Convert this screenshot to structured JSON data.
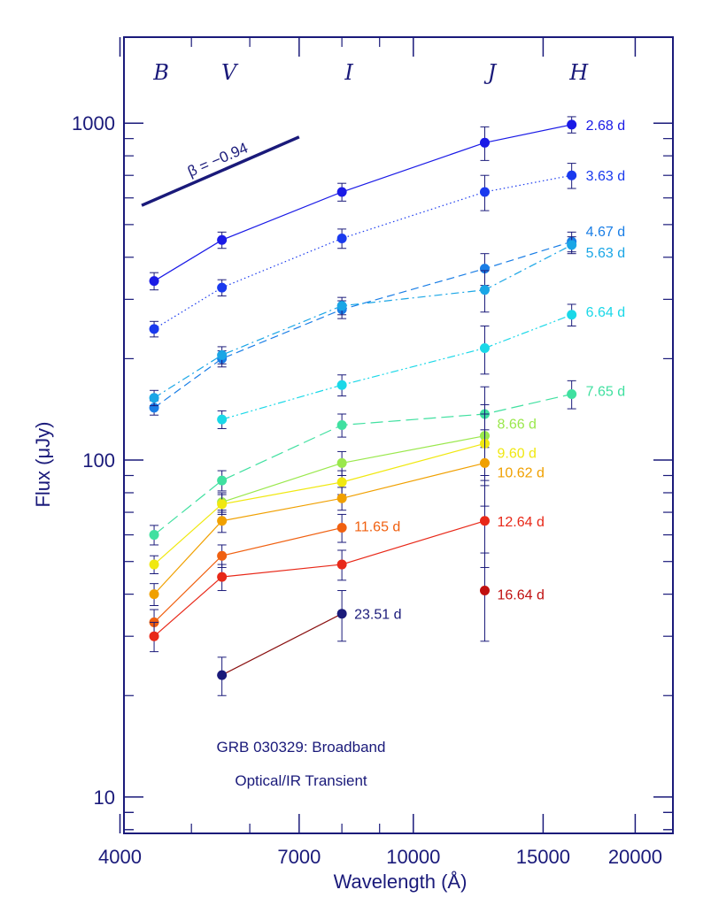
{
  "chart_data": {
    "type": "line",
    "title": "GRB 030329: Broadband Optical/IR Transient",
    "annotation_lines": [
      "GRB 030329: Broadband",
      "Optical/IR Transient"
    ],
    "xlabel": "Wavelength (Å)",
    "ylabel": "Flux (μJy)",
    "x_scale": "log",
    "y_scale": "log",
    "xlim": [
      4050,
      22500
    ],
    "ylim": [
      7.8,
      1800
    ],
    "x_tick_labels": [
      "4000",
      "7000",
      "10000",
      "15000",
      "20000"
    ],
    "x_tick_values": [
      4000,
      7000,
      10000,
      15000,
      20000
    ],
    "x_minor_ticks": [
      5000,
      6000,
      8000,
      9000
    ],
    "y_tick_labels": [
      "10",
      "100",
      "1000"
    ],
    "y_tick_values": [
      10,
      100,
      1000
    ],
    "bands": [
      {
        "name": "B",
        "x": 4450
      },
      {
        "name": "V",
        "x": 5500
      },
      {
        "name": "I",
        "x": 8000
      },
      {
        "name": "J",
        "x": 12500
      },
      {
        "name": "H",
        "x": 16400
      }
    ],
    "slope_line": {
      "label": "β = −0.94",
      "x": [
        4450,
        7000
      ],
      "y": [
        570,
        910
      ],
      "color": "#1a1a7a"
    },
    "axis_color": "#1a1a7a",
    "series": [
      {
        "name": "2.68 d",
        "color": "#1a1ae6",
        "dash": "solid",
        "x": [
          4450,
          5500,
          8000,
          12500,
          16400
        ],
        "y": [
          340,
          450,
          625,
          875,
          990
        ],
        "err": [
          20,
          25,
          38,
          100,
          55
        ]
      },
      {
        "name": "3.63 d",
        "color": "#1a3aee",
        "dash": "dotted",
        "x": [
          4450,
          5500,
          8000,
          12500,
          16400
        ],
        "y": [
          245,
          325,
          455,
          625,
          700
        ],
        "err": [
          13,
          18,
          30,
          75,
          60
        ]
      },
      {
        "name": "4.67 d",
        "color": "#1a7ee6",
        "dash": "dashed",
        "x": [
          4450,
          5500,
          8000,
          12500,
          16400
        ],
        "y": [
          143,
          200,
          280,
          370,
          445
        ],
        "err": [
          7,
          11,
          17,
          40,
          30
        ]
      },
      {
        "name": "5.63 d",
        "color": "#1aa6e6",
        "dash": "dashdot",
        "x": [
          4450,
          5500,
          8000,
          12500,
          16400
        ],
        "y": [
          153,
          205,
          287,
          320,
          435
        ],
        "err": [
          8,
          12,
          17,
          45,
          25
        ]
      },
      {
        "name": "6.64 d",
        "color": "#1ad8e8",
        "dash": "dashdotdot",
        "x": [
          5500,
          8000,
          12500,
          16400
        ],
        "y": [
          132,
          167,
          215,
          270
        ],
        "err": [
          8,
          12,
          35,
          20
        ]
      },
      {
        "name": "7.65 d",
        "color": "#40e0a0",
        "dash": "longdash",
        "x": [
          4450,
          5500,
          8000,
          12500,
          16400
        ],
        "y": [
          60,
          87,
          127,
          137,
          157
        ],
        "err": [
          4,
          6,
          10,
          28,
          15
        ]
      },
      {
        "name": "8.66 d",
        "color": "#9ae84c",
        "dash": "solid",
        "x": [
          5500,
          8000,
          12500
        ],
        "y": [
          75,
          98,
          118
        ],
        "err": [
          5,
          8,
          28
        ]
      },
      {
        "name": "9.60 d",
        "color": "#f0e810",
        "dash": "solid",
        "x": [
          4450,
          5500,
          8000,
          12500
        ],
        "y": [
          49,
          74,
          86,
          112
        ],
        "err": [
          3,
          5,
          7,
          25
        ]
      },
      {
        "name": "10.62 d",
        "color": "#f0a000",
        "dash": "solid",
        "x": [
          4450,
          5500,
          8000,
          12500
        ],
        "y": [
          40,
          66,
          77,
          98
        ],
        "err": [
          3,
          5,
          6,
          25
        ]
      },
      {
        "name": "11.65 d",
        "color": "#f06010",
        "dash": "solid",
        "x": [
          4450,
          5500,
          8000
        ],
        "y": [
          33,
          52,
          63
        ],
        "err": [
          3,
          4,
          6
        ]
      },
      {
        "name": "12.64 d",
        "color": "#e82818",
        "dash": "solid",
        "x": [
          4450,
          5500,
          8000,
          12500
        ],
        "y": [
          30,
          45,
          49,
          66
        ],
        "err": [
          3,
          4,
          5,
          18
        ]
      },
      {
        "name": "16.64 d",
        "color": "#c01010",
        "dash": "none",
        "x": [
          12500
        ],
        "y": [
          41
        ],
        "err": [
          12
        ]
      },
      {
        "name": "23.51 d",
        "color": "#1a1a7a",
        "dash": "solid",
        "line_color": "#8a1010",
        "x": [
          5500,
          8000
        ],
        "y": [
          23,
          35
        ],
        "err": [
          3,
          6
        ]
      }
    ]
  }
}
